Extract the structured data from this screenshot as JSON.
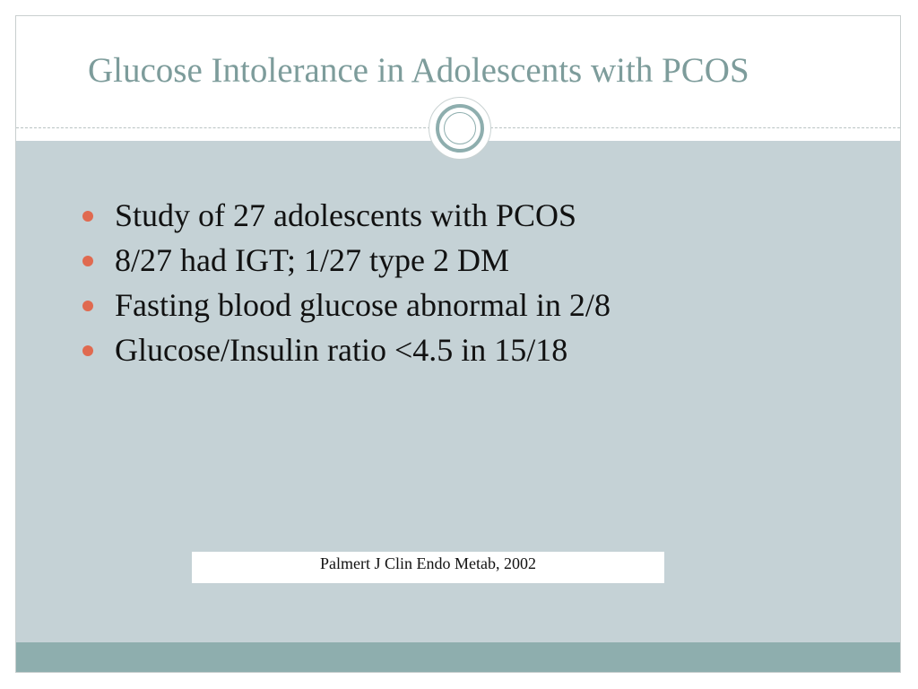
{
  "slide": {
    "title": "Glucose Intolerance in Adolescents with PCOS",
    "bullets": [
      "Study of 27 adolescents with PCOS",
      "8/27 had IGT; 1/27 type 2 DM",
      "Fasting blood glucose abnormal in 2/8",
      "Glucose/Insulin ratio <4.5 in 15/18"
    ],
    "citation": "Palmert J Clin Endo Metab, 2002"
  },
  "colors": {
    "title": "#7d9c9b",
    "content_background": "#c5d2d6",
    "footer_bar": "#8eaeae",
    "bullet": "#e06a50"
  }
}
